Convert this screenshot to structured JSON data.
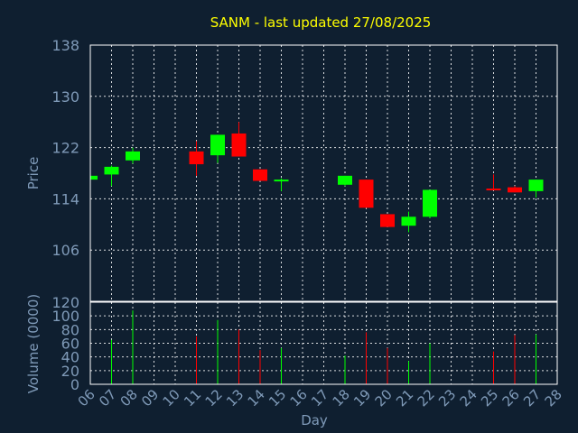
{
  "chart_data": {
    "type": "candlestick",
    "title": "SANM - last updated 27/08/2025",
    "ylabel": "Price",
    "volume_ylabel": "Volume (0000)",
    "xlabel": "Day",
    "ylim": [
      98,
      138
    ],
    "yticks": [
      106,
      114,
      122,
      130,
      138
    ],
    "volume_ylim": [
      0,
      120
    ],
    "volume_yticks": [
      0,
      20,
      40,
      60,
      80,
      100,
      120
    ],
    "x_range": [
      6,
      28
    ],
    "x_ticks": [
      "06",
      "07",
      "08",
      "09",
      "10",
      "11",
      "12",
      "13",
      "14",
      "15",
      "16",
      "17",
      "18",
      "19",
      "20",
      "21",
      "22",
      "23",
      "24",
      "25",
      "26",
      "27",
      "28"
    ],
    "up_color": "#00ff00",
    "down_color": "#ff0000",
    "candles": [
      {
        "day": 6,
        "open": 117.0,
        "high": 117.8,
        "low": 116.8,
        "close": 117.6,
        "volume": 0
      },
      {
        "day": 7,
        "open": 117.8,
        "high": 119.2,
        "low": 116.0,
        "close": 119.0,
        "volume": 65
      },
      {
        "day": 8,
        "open": 120.0,
        "high": 122.0,
        "low": 119.5,
        "close": 121.4,
        "volume": 108
      },
      {
        "day": 11,
        "open": 121.4,
        "high": 123.0,
        "low": 117.6,
        "close": 119.4,
        "volume": 70
      },
      {
        "day": 12,
        "open": 120.8,
        "high": 124.0,
        "low": 119.6,
        "close": 124.0,
        "volume": 94
      },
      {
        "day": 13,
        "open": 124.2,
        "high": 126.0,
        "low": 120.6,
        "close": 120.6,
        "volume": 80
      },
      {
        "day": 14,
        "open": 118.6,
        "high": 118.6,
        "low": 116.8,
        "close": 116.8,
        "volume": 50
      },
      {
        "day": 15,
        "open": 116.8,
        "high": 117.2,
        "low": 115.2,
        "close": 117.0,
        "volume": 53
      },
      {
        "day": 18,
        "open": 116.2,
        "high": 117.6,
        "low": 116.0,
        "close": 117.6,
        "volume": 42
      },
      {
        "day": 19,
        "open": 117.0,
        "high": 117.0,
        "low": 112.6,
        "close": 112.6,
        "volume": 76
      },
      {
        "day": 20,
        "open": 111.6,
        "high": 111.6,
        "low": 109.6,
        "close": 109.6,
        "volume": 53
      },
      {
        "day": 21,
        "open": 109.8,
        "high": 112.0,
        "low": 108.8,
        "close": 111.2,
        "volume": 34
      },
      {
        "day": 22,
        "open": 111.2,
        "high": 115.4,
        "low": 111.0,
        "close": 115.4,
        "volume": 60
      },
      {
        "day": 25,
        "open": 115.6,
        "high": 117.8,
        "low": 115.4,
        "close": 115.4,
        "volume": 48
      },
      {
        "day": 26,
        "open": 115.8,
        "high": 116.0,
        "low": 115.0,
        "close": 115.0,
        "volume": 72
      },
      {
        "day": 27,
        "open": 115.2,
        "high": 117.0,
        "low": 114.2,
        "close": 117.0,
        "volume": 73
      }
    ]
  }
}
